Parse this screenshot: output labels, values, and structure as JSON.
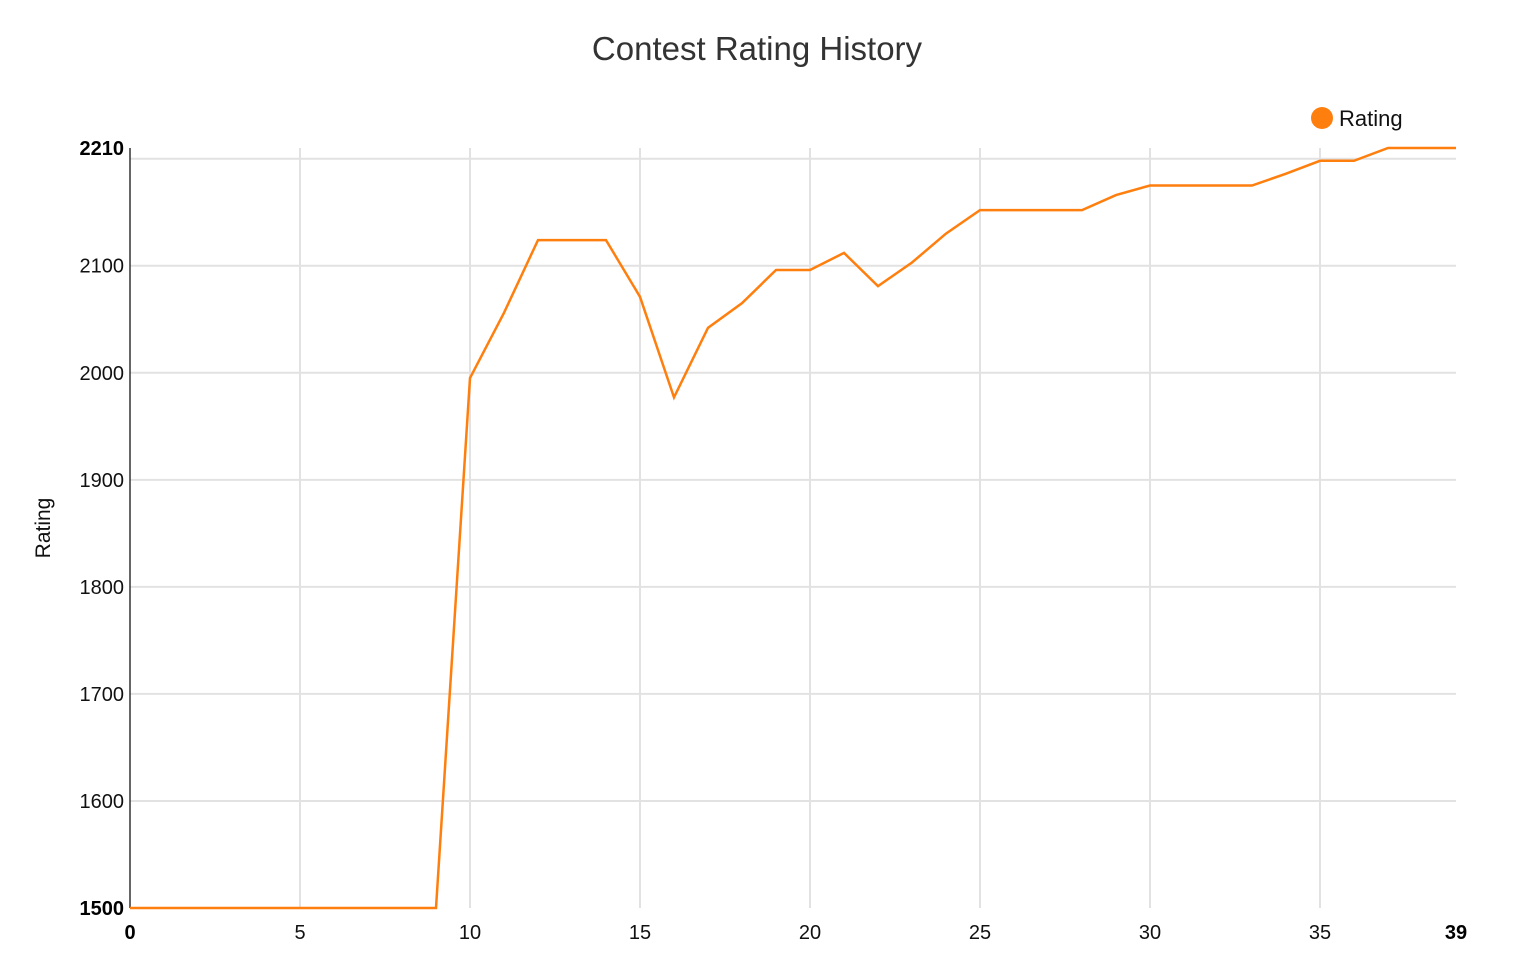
{
  "chart_data": {
    "type": "line",
    "title": "Contest Rating History",
    "xlabel": "",
    "ylabel": "Rating",
    "xlim": [
      0,
      39
    ],
    "ylim": [
      1500,
      2210
    ],
    "x_ticks": [
      "0",
      "5",
      "10",
      "15",
      "20",
      "25",
      "30",
      "35",
      "39"
    ],
    "x_tick_values": [
      0,
      5,
      10,
      15,
      20,
      25,
      30,
      35,
      39
    ],
    "x_tick_bold": [
      true,
      false,
      false,
      false,
      false,
      false,
      false,
      false,
      true
    ],
    "y_ticks": [
      "1500",
      "1600",
      "1700",
      "1800",
      "1900",
      "2000",
      "2100",
      "2210"
    ],
    "y_tick_values": [
      1500,
      1600,
      1700,
      1800,
      1900,
      2000,
      2100,
      2210
    ],
    "y_tick_bold": [
      true,
      false,
      false,
      false,
      false,
      false,
      false,
      true
    ],
    "y_grid_values": [
      1600,
      1700,
      1800,
      1900,
      2000,
      2100,
      2200
    ],
    "x_grid_values": [
      5,
      10,
      15,
      20,
      25,
      30,
      35
    ],
    "grid": true,
    "legend": {
      "position": "top-right",
      "entries": [
        {
          "name": "Rating",
          "color": "#ff7f0e"
        }
      ]
    },
    "series": [
      {
        "name": "Rating",
        "color": "#ff7f0e",
        "x": [
          0,
          1,
          2,
          3,
          4,
          5,
          6,
          7,
          8,
          9,
          10,
          11,
          12,
          13,
          14,
          15,
          16,
          17,
          18,
          19,
          20,
          21,
          22,
          23,
          24,
          25,
          26,
          27,
          28,
          29,
          30,
          31,
          32,
          33,
          34,
          35,
          36,
          37,
          38,
          39
        ],
        "values": [
          1500,
          1500,
          1500,
          1500,
          1500,
          1500,
          1500,
          1500,
          1500,
          1500,
          1995,
          2056,
          2124,
          2124,
          2124,
          2071,
          1977,
          2042,
          2065,
          2096,
          2096,
          2112,
          2081,
          2103,
          2130,
          2152,
          2152,
          2152,
          2152,
          2166,
          2175,
          2175,
          2175,
          2175,
          2186,
          2198,
          2198,
          2210,
          2210,
          2210
        ]
      }
    ]
  }
}
